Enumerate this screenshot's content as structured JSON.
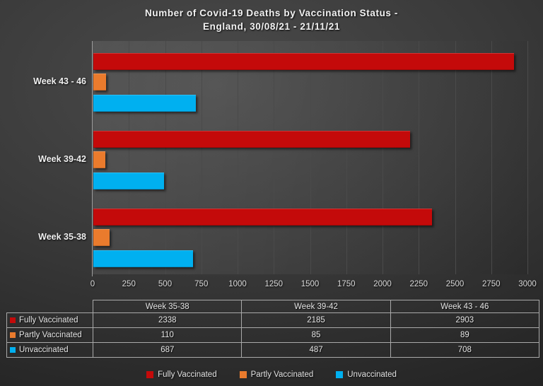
{
  "title": {
    "line1": "Number of Covid-19 Deaths by Vaccination Status -",
    "line2": "England, 30/08/21 - 21/11/21"
  },
  "chart_data": {
    "type": "bar",
    "orientation": "horizontal",
    "title": "Number of Covid-19 Deaths by Vaccination Status - England, 30/08/21 - 21/11/21",
    "categories": [
      "Week 43 - 46",
      "Week 39-42",
      "Week 35-38"
    ],
    "series": [
      {
        "name": "Fully Vaccinated",
        "color": "#C40A0A",
        "values": [
          2903,
          2185,
          2338
        ]
      },
      {
        "name": "Partly Vaccinated",
        "color": "#EA7B2D",
        "values": [
          89,
          85,
          110
        ]
      },
      {
        "name": "Unvaccinated",
        "color": "#00B0F0",
        "values": [
          708,
          487,
          687
        ]
      }
    ],
    "xlim": [
      0,
      3000
    ],
    "xticks": [
      0,
      250,
      500,
      750,
      1000,
      1250,
      1500,
      1750,
      2000,
      2250,
      2500,
      2750,
      3000
    ],
    "grid": "vertical",
    "legend_position": "bottom"
  },
  "table": {
    "col_headers": [
      "Week 35-38",
      "Week 39-42",
      "Week 43 - 46"
    ],
    "rows": [
      {
        "label": "Fully Vaccinated",
        "color": "#C40A0A",
        "values": [
          "2338",
          "2185",
          "2903"
        ]
      },
      {
        "label": "Partly Vaccinated",
        "color": "#EA7B2D",
        "values": [
          "110",
          "85",
          "89"
        ]
      },
      {
        "label": "Unvaccinated",
        "color": "#00B0F0",
        "values": [
          "687",
          "487",
          "708"
        ]
      }
    ]
  }
}
